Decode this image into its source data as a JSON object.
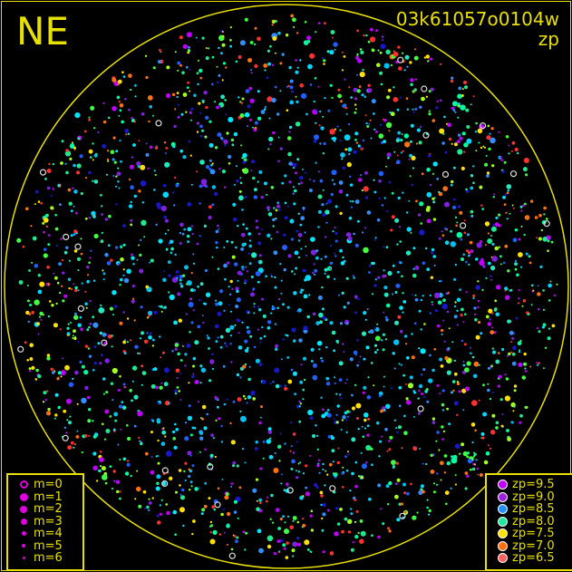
{
  "header": {
    "direction": "NE",
    "frame_id": "03k61057o0104w",
    "mode": "zp"
  },
  "colors": {
    "frame": "#e8e000"
  },
  "magnitude_legend": [
    {
      "label": "m=0",
      "size": 9,
      "hollow": true
    },
    {
      "label": "m=1",
      "size": 9
    },
    {
      "label": "m=2",
      "size": 8
    },
    {
      "label": "m=3",
      "size": 7
    },
    {
      "label": "m=4",
      "size": 5
    },
    {
      "label": "m=5",
      "size": 4
    },
    {
      "label": "m=6",
      "size": 3
    }
  ],
  "zp_legend": [
    {
      "label": "zp=9.5",
      "color": "#c000ff"
    },
    {
      "label": "zp=9.0",
      "color": "#a020e0"
    },
    {
      "label": "zp=8.5",
      "color": "#2090ff"
    },
    {
      "label": "zp=8.0",
      "color": "#20e8a0"
    },
    {
      "label": "zp=7.5",
      "color": "#ffe000"
    },
    {
      "label": "zp=7.0",
      "color": "#ff7010"
    },
    {
      "label": "zp=6.5",
      "color": "#ff6060"
    }
  ]
}
